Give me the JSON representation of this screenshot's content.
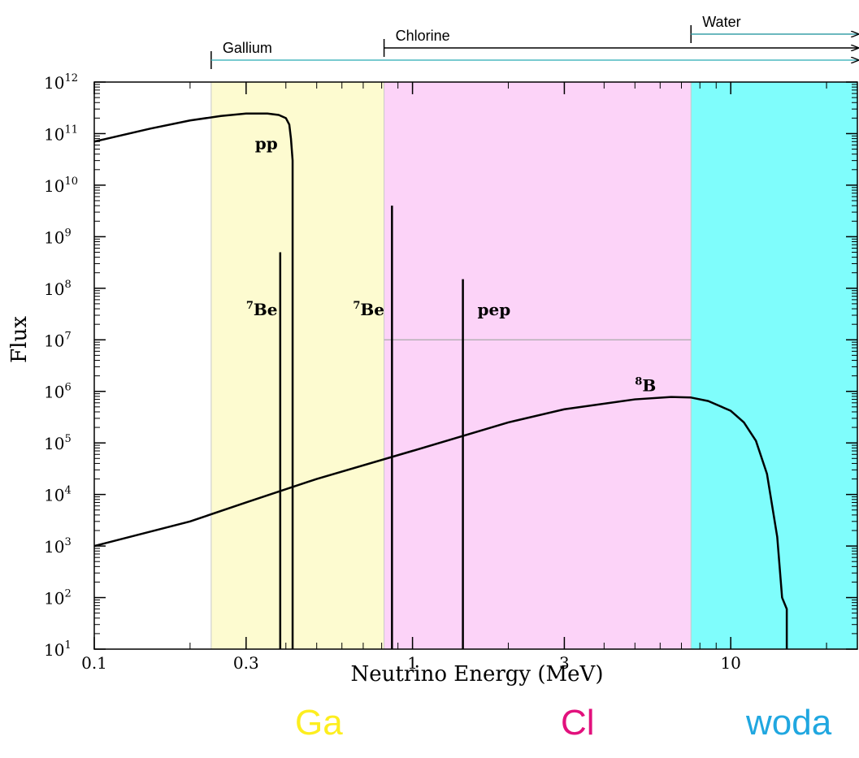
{
  "chart_data": {
    "type": "line",
    "xlabel": "Neutrino Energy (MeV)",
    "ylabel": "Flux",
    "xscale": "log",
    "yscale": "log",
    "xlim": [
      0.1,
      25
    ],
    "ylim": [
      10,
      1000000000000.0
    ],
    "grid": false,
    "x_ticks": [
      {
        "value": 0.1,
        "label": "0.1"
      },
      {
        "value": 0.3,
        "label": "0.3"
      },
      {
        "value": 1,
        "label": "1"
      },
      {
        "value": 3,
        "label": "3"
      },
      {
        "value": 10,
        "label": "10"
      }
    ],
    "y_ticks": [
      {
        "value": 10,
        "exp": "1"
      },
      {
        "value": 100,
        "exp": "2"
      },
      {
        "value": 1000,
        "exp": "3"
      },
      {
        "value": 10000,
        "exp": "4"
      },
      {
        "value": 100000,
        "exp": "5"
      },
      {
        "value": 1000000,
        "exp": "6"
      },
      {
        "value": 10000000,
        "exp": "7"
      },
      {
        "value": 100000000,
        "exp": "8"
      },
      {
        "value": 1000000000,
        "exp": "9"
      },
      {
        "value": 10000000000,
        "exp": "10"
      },
      {
        "value": 100000000000,
        "exp": "11"
      },
      {
        "value": 1000000000000,
        "exp": "12"
      }
    ],
    "y_tick_base": "10",
    "regions": [
      {
        "name": "gallium",
        "x_start": 0.233,
        "x_end": 0.814,
        "color": "#fdfbd0"
      },
      {
        "name": "chlorine",
        "x_start": 0.814,
        "x_end": 7.5,
        "color": "#fcd3f8"
      },
      {
        "name": "water",
        "x_start": 7.5,
        "x_end": 25,
        "color": "#7ffdfc"
      }
    ],
    "thresholds": [
      {
        "label": "Gallium",
        "x": 0.233
      },
      {
        "label": "Chlorine",
        "x": 0.814
      },
      {
        "label": "Water",
        "x": 7.5
      }
    ],
    "reference_line": {
      "y": 10000000.0,
      "x_start": 0.814,
      "x_end": 7.5
    },
    "series": [
      {
        "label": "pp",
        "kind": "continuous",
        "points": [
          [
            0.1,
            70000000000.0
          ],
          [
            0.15,
            125000000000.0
          ],
          [
            0.2,
            180000000000.0
          ],
          [
            0.25,
            220000000000.0
          ],
          [
            0.3,
            245000000000.0
          ],
          [
            0.35,
            245000000000.0
          ],
          [
            0.38,
            230000000000.0
          ],
          [
            0.4,
            200000000000.0
          ],
          [
            0.41,
            150000000000.0
          ],
          [
            0.415,
            80000000000.0
          ],
          [
            0.42,
            30000000000.0
          ],
          [
            0.42,
            10
          ]
        ]
      },
      {
        "label": "8B",
        "kind": "continuous",
        "points": [
          [
            0.1,
            1000
          ],
          [
            0.2,
            3000
          ],
          [
            0.3,
            7000
          ],
          [
            0.5,
            20000
          ],
          [
            1,
            70000
          ],
          [
            2,
            250000
          ],
          [
            3,
            450000
          ],
          [
            5,
            700000
          ],
          [
            6.5,
            780000
          ],
          [
            7.5,
            760000
          ],
          [
            8.5,
            650000
          ],
          [
            10,
            420000
          ],
          [
            11,
            250000
          ],
          [
            12,
            110000
          ],
          [
            13,
            25000
          ],
          [
            14,
            1500
          ],
          [
            14.5,
            100
          ],
          [
            15,
            60
          ],
          [
            15,
            10
          ]
        ]
      },
      {
        "label": "7Be",
        "kind": "line",
        "x": 0.384,
        "y_peak": 500000000.0
      },
      {
        "label": "7Be",
        "kind": "line",
        "x": 0.862,
        "y_peak": 4000000000.0
      },
      {
        "label": "pep",
        "kind": "line",
        "x": 1.44,
        "y_peak": 150000000.0
      }
    ],
    "annotations": [
      {
        "label": "pp",
        "sup": "",
        "x": 0.32,
        "y": 50000000000.0
      },
      {
        "label": "Be",
        "sup": "7",
        "x": 0.3,
        "y": 30000000.0
      },
      {
        "label": "Be",
        "sup": "7",
        "x": 0.65,
        "y": 30000000.0
      },
      {
        "label": "pep",
        "sup": "",
        "x": 1.6,
        "y": 30000000.0
      },
      {
        "label": "B",
        "sup": "8",
        "x": 5.0,
        "y": 1000000.0
      }
    ]
  },
  "bottom_labels": [
    {
      "text": "Ga",
      "color": "#fdee1f"
    },
    {
      "text": "Cl",
      "color": "#e2117d"
    },
    {
      "text": "woda",
      "color": "#20a7e0"
    }
  ]
}
